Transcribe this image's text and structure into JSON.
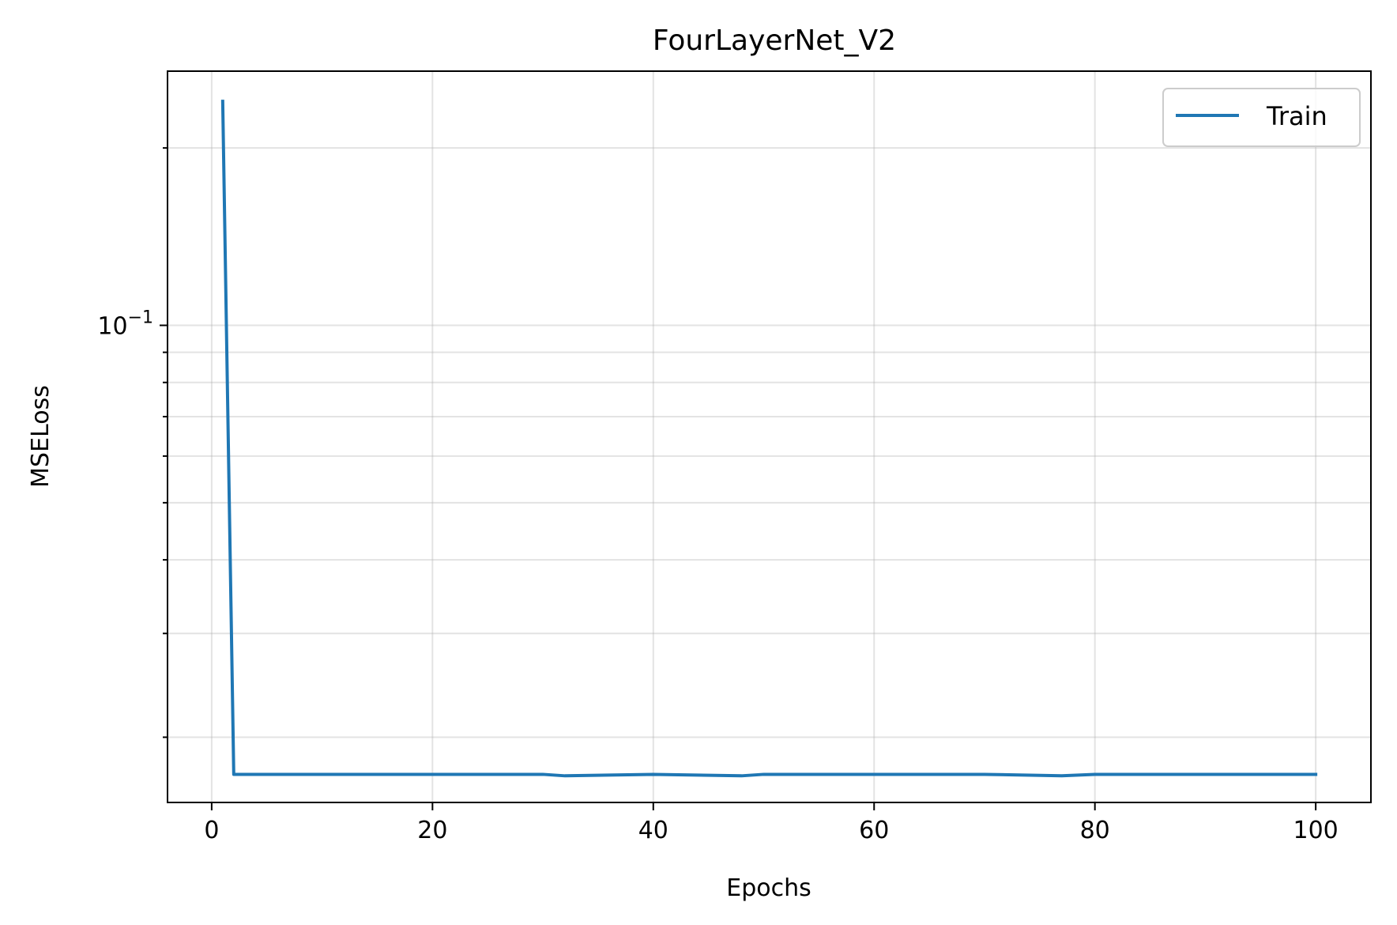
{
  "chart_data": {
    "type": "line",
    "title": "FourLayerNet_V2",
    "xlabel": "Epochs",
    "ylabel": "MSELoss",
    "xlim": [
      -4,
      105
    ],
    "ylim": [
      0.0155,
      0.27
    ],
    "yscale": "log",
    "grid": true,
    "legend_position": "top-right",
    "xticks": [
      0,
      20,
      40,
      60,
      80,
      100
    ],
    "xtick_labels": [
      "0",
      "20",
      "40",
      "60",
      "80",
      "100"
    ],
    "ytick_major": [
      {
        "value": 0.1,
        "base": "10",
        "exponent": "−1"
      }
    ],
    "ytick_minor": [
      0.02,
      0.03,
      0.04,
      0.05,
      0.06,
      0.07,
      0.08,
      0.09,
      0.2
    ],
    "series": [
      {
        "name": "Train",
        "color": "#1f77b4",
        "x": [
          1,
          2,
          10,
          20,
          30,
          32,
          40,
          48,
          50,
          60,
          70,
          77,
          80,
          90,
          100
        ],
        "y": [
          0.24,
          0.0173,
          0.0173,
          0.0173,
          0.0173,
          0.0172,
          0.0173,
          0.0172,
          0.0173,
          0.0173,
          0.0173,
          0.0172,
          0.0173,
          0.0173,
          0.0173
        ]
      }
    ]
  }
}
